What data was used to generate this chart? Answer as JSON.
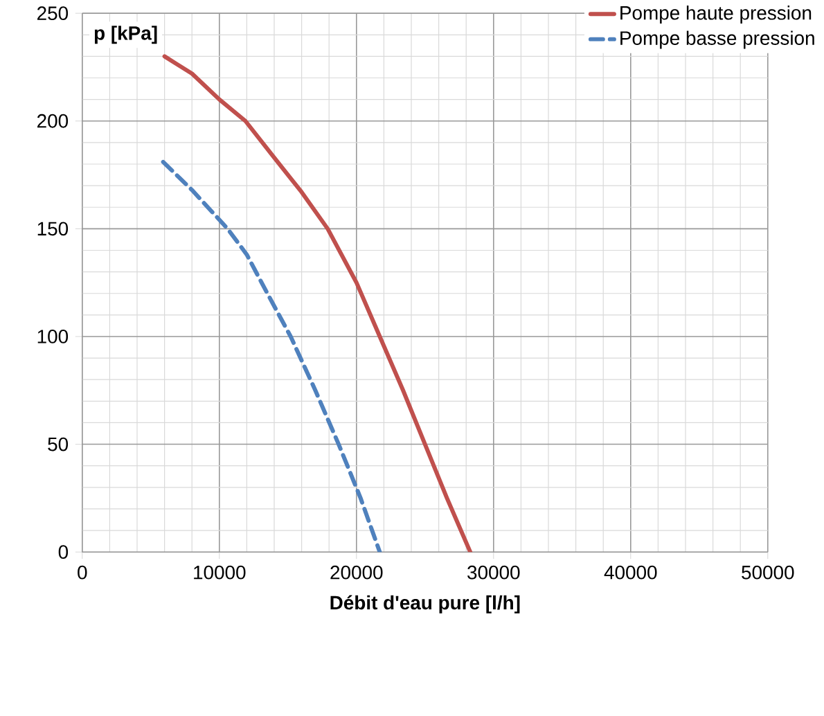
{
  "chart_data": {
    "type": "line",
    "xlabel": "Débit d'eau pure [l/h]",
    "ylabel": "p [kPa]",
    "xlim": [
      0,
      50000
    ],
    "ylim": [
      0,
      250
    ],
    "xticks": [
      0,
      10000,
      20000,
      30000,
      40000,
      50000
    ],
    "yticks": [
      0,
      50,
      100,
      150,
      200,
      250
    ],
    "grid": true,
    "legend": "top right",
    "marker": "none",
    "series": [
      {
        "name": "Pompe haute pression",
        "color": "#c0504d",
        "line_style": "solid",
        "x": [
          6000,
          8000,
          10000,
          11900,
          14000,
          16000,
          17900,
          20000,
          21700,
          23400,
          25000,
          26600,
          28300
        ],
        "values": [
          230,
          222,
          210,
          200,
          183,
          167,
          150,
          125,
          100,
          75,
          50,
          25,
          0
        ]
      },
      {
        "name": "Pompe basse pression",
        "color": "#4f81bd",
        "line_style": "dashed",
        "x": [
          5900,
          8000,
          10600,
          12000,
          13500,
          15200,
          17000,
          18700,
          20300,
          21700
        ],
        "values": [
          181,
          168,
          150,
          138,
          120,
          100,
          75,
          50,
          25,
          0
        ]
      }
    ]
  }
}
